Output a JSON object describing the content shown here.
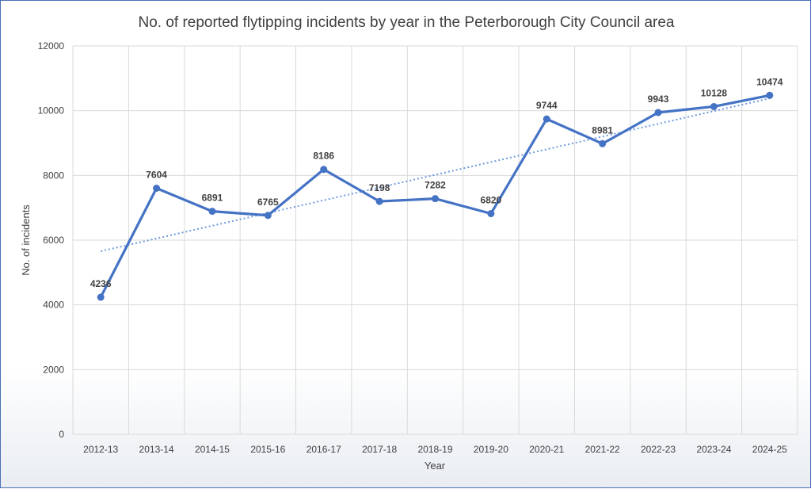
{
  "chart_data": {
    "type": "line",
    "title": "No. of reported flytipping incidents by year in the Peterborough City Council area",
    "xlabel": "Year",
    "ylabel": "No. of incidents",
    "ylim": [
      0,
      12000
    ],
    "yticks": [
      0,
      2000,
      4000,
      6000,
      8000,
      10000,
      12000
    ],
    "grid": true,
    "legend": "none",
    "categories": [
      "2012-13",
      "2013-14",
      "2014-15",
      "2015-16",
      "2016-17",
      "2017-18",
      "2018-19",
      "2019-20",
      "2020-21",
      "2021-22",
      "2022-23",
      "2023-24",
      "2024-25"
    ],
    "series": [
      {
        "name": "Incidents",
        "values": [
          4236,
          7604,
          6891,
          6765,
          8186,
          7198,
          7282,
          6820,
          9744,
          8981,
          9943,
          10128,
          10474
        ],
        "color": "#4472c4",
        "trendline": "linear"
      }
    ],
    "trendline_color": "#6f9ae0"
  }
}
